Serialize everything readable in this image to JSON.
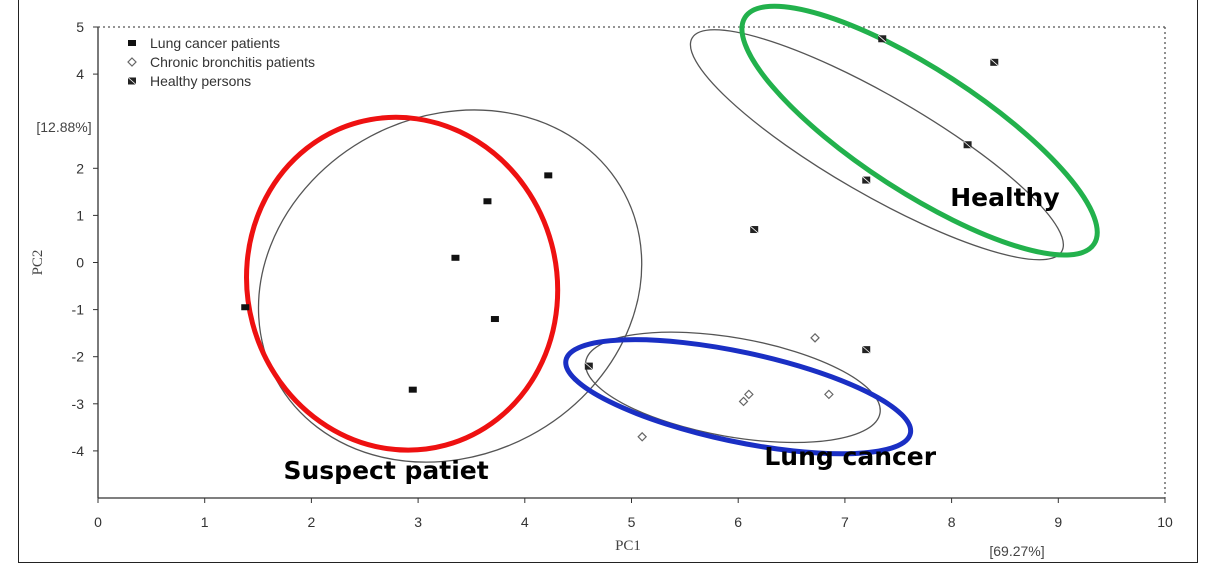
{
  "chart_data": {
    "type": "scatter",
    "xlabel": "PC1",
    "ylabel": "PC2",
    "xlabel_pct": "[69.27%]",
    "ylabel_pct": "[12.88%]",
    "xlim": [
      0,
      10
    ],
    "ylim": [
      -5,
      5
    ],
    "x_ticks": [
      "0",
      "1",
      "2",
      "3",
      "4",
      "5",
      "6",
      "7",
      "8",
      "9",
      "10"
    ],
    "y_ticks": [
      "5",
      "4",
      "2",
      "1",
      "0",
      "-1",
      "-2",
      "-3",
      "-4"
    ],
    "y_tick_values": [
      5,
      4,
      2,
      1,
      0,
      -1,
      -2,
      -3,
      -4
    ],
    "legend": {
      "position": "top-left",
      "items": [
        {
          "label": "Lung cancer patients",
          "marker": "filled-square"
        },
        {
          "label": "Chronic bronchitis patients",
          "marker": "open-diamond"
        },
        {
          "label": "Healthy persons",
          "marker": "cross-square"
        }
      ]
    },
    "series": [
      {
        "name": "Lung cancer patients",
        "marker": "filled-square",
        "x": [
          1.38,
          2.95,
          3.35,
          3.65,
          3.72,
          4.22
        ],
        "y": [
          -0.95,
          -2.7,
          0.1,
          1.3,
          -1.2,
          1.85
        ]
      },
      {
        "name": "Chronic bronchitis patients",
        "marker": "open-diamond",
        "x": [
          5.1,
          6.05,
          6.1,
          6.72,
          6.85
        ],
        "y": [
          -3.7,
          -2.95,
          -2.8,
          -1.6,
          -2.8
        ]
      },
      {
        "name": "Healthy persons",
        "marker": "cross-square",
        "x": [
          6.15,
          7.2,
          7.35,
          8.15,
          8.4,
          4.6,
          7.2
        ],
        "y": [
          0.7,
          1.75,
          4.75,
          2.5,
          4.25,
          -2.2,
          -1.85
        ]
      }
    ],
    "confidence_ellipses": [
      {
        "cx": 3.3,
        "cy": -0.5,
        "rx": 1.85,
        "ry": 3.6,
        "angle": 28,
        "color": "#555555"
      },
      {
        "cx": 7.3,
        "cy": 2.5,
        "rx": 2.0,
        "ry": 1.05,
        "angle": -30,
        "color": "#555555"
      },
      {
        "cx": 5.95,
        "cy": -2.65,
        "rx": 1.4,
        "ry": 1.05,
        "angle": -10,
        "color": "#555555"
      }
    ],
    "highlight_ellipses": [
      {
        "label": "Suspect patiet",
        "cx": 2.85,
        "cy": -0.45,
        "rx": 1.45,
        "ry": 3.55,
        "angle": 15,
        "color": "#ee1111"
      },
      {
        "label": "Healthy",
        "cx": 7.7,
        "cy": 2.8,
        "rx": 1.95,
        "ry": 1.3,
        "angle": -33,
        "color": "#22b14c"
      },
      {
        "label": "Lung cancer",
        "cx": 6.0,
        "cy": -2.85,
        "rx": 1.65,
        "ry": 0.95,
        "angle": -12,
        "color": "#1a2fc4"
      }
    ],
    "annotations": [
      {
        "text": "Suspect patiet",
        "x": 2.7,
        "y": -4.6
      },
      {
        "text": "Healthy",
        "x": 8.5,
        "y": 1.2
      },
      {
        "text": "Lung cancer",
        "x": 7.05,
        "y": -4.3
      }
    ],
    "grid": false,
    "frame": "dotted-top-right"
  }
}
